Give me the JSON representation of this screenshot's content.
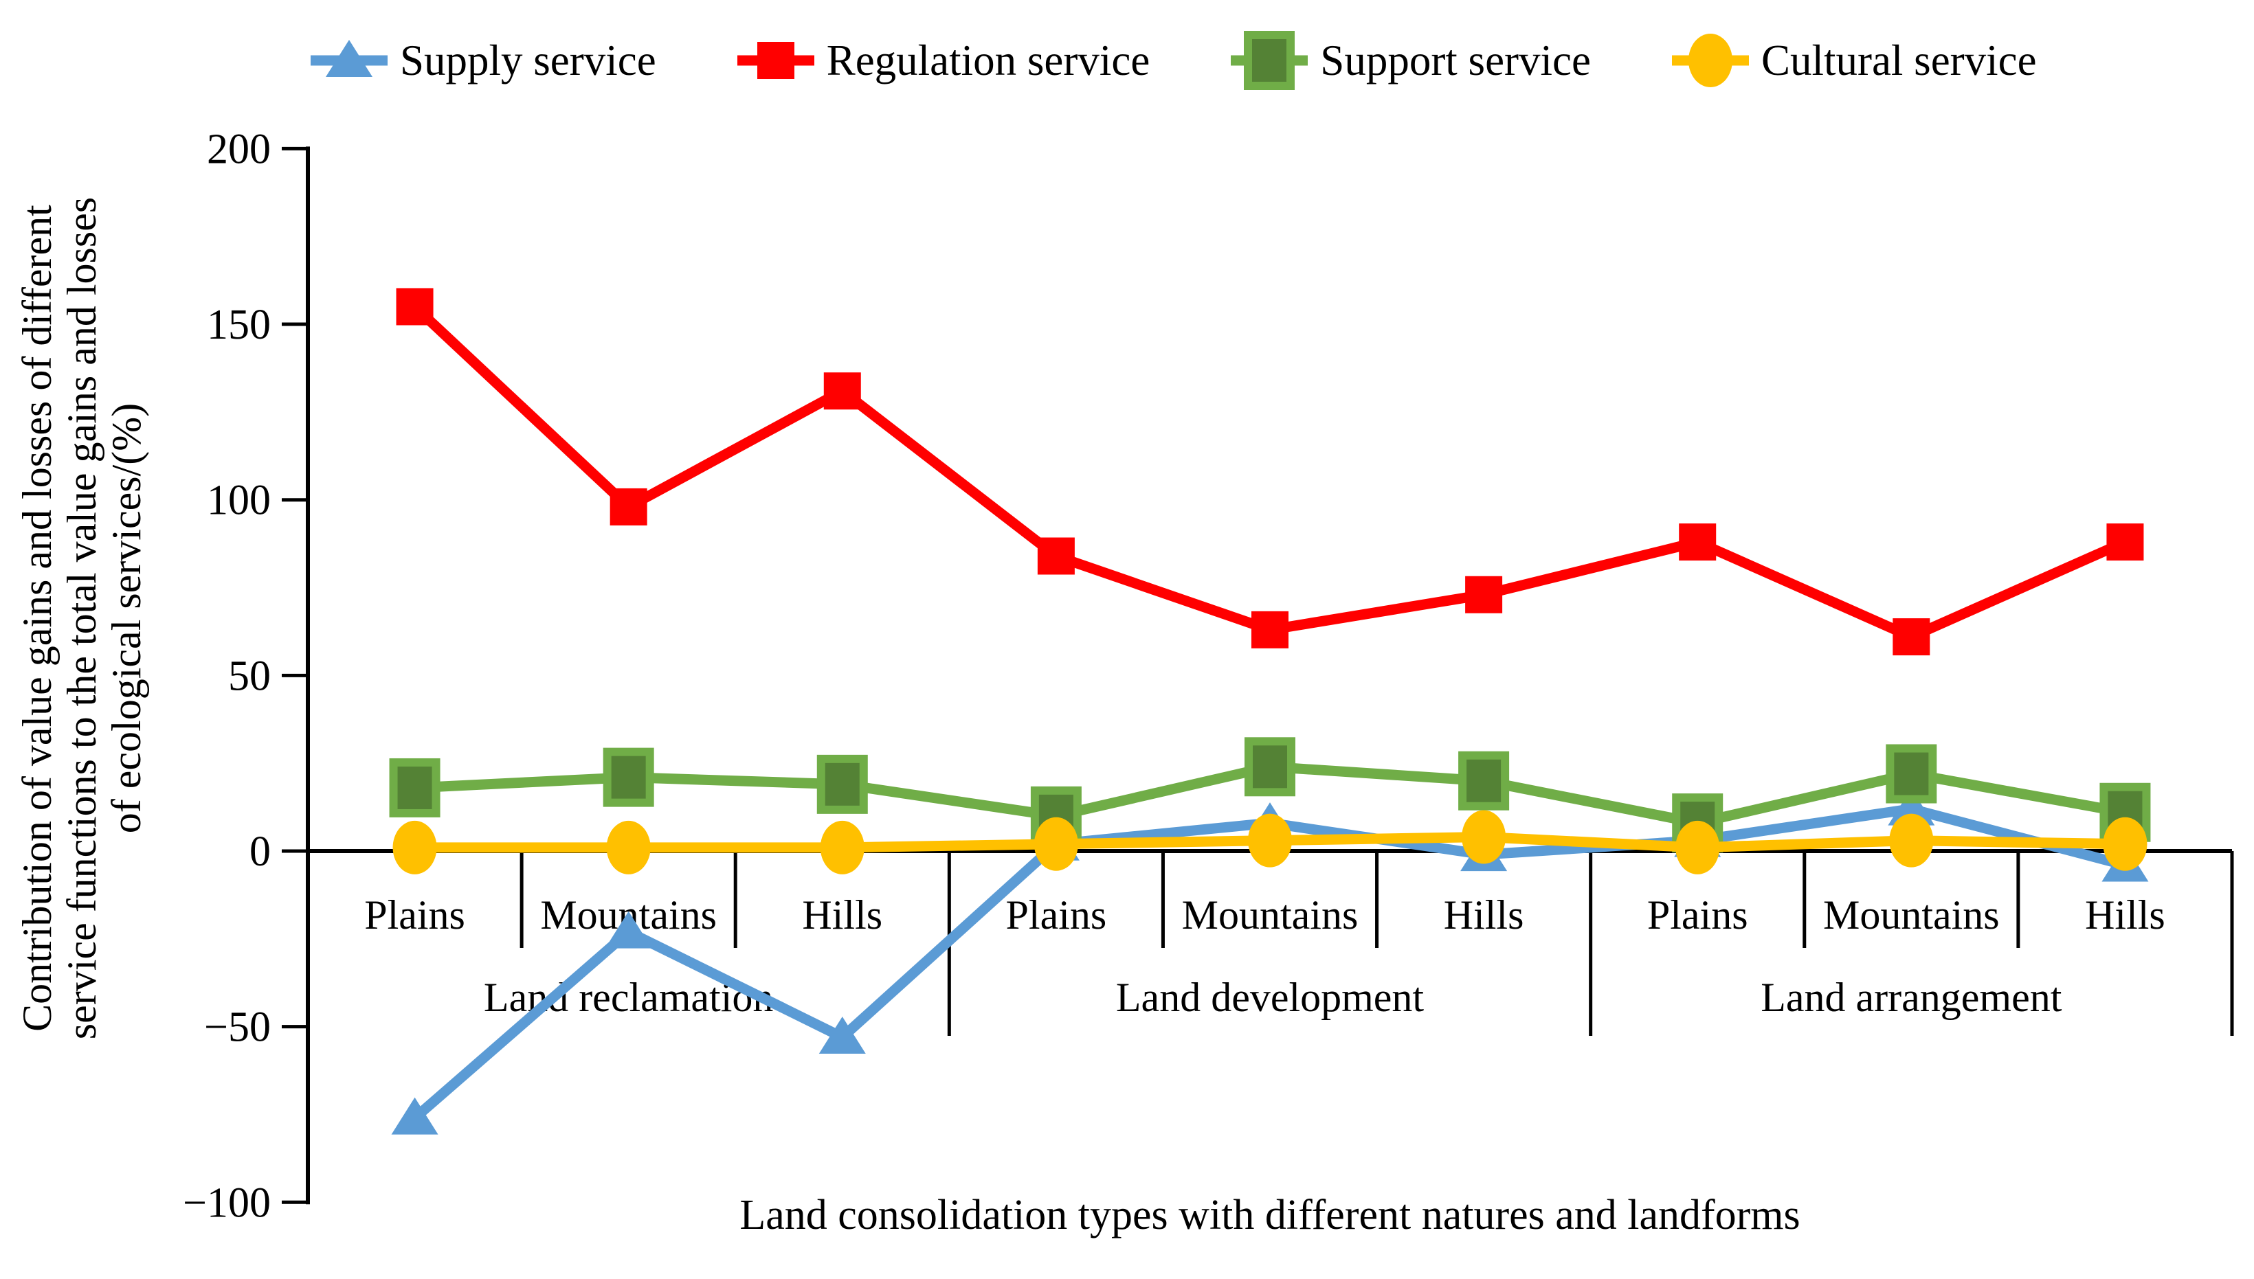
{
  "figure": {
    "ylabel_lines": [
      "Contribution of value gains and losses of different",
      "service functions to the total value gains and losses",
      "of ecological services/(%)"
    ]
  },
  "chart_data": {
    "type": "line",
    "title": "",
    "categories": [
      "Plains",
      "Mountains",
      "Hills",
      "Plains",
      "Mountains",
      "Hills",
      "Plains",
      "Mountains",
      "Hills"
    ],
    "group_labels": [
      "Land reclamation",
      "Land development",
      "Land arrangement"
    ],
    "series": [
      {
        "name": "Supply service",
        "color": "#5B9BD5",
        "marker": "triangle",
        "values": [
          -76,
          -23,
          -53,
          2,
          8,
          -1,
          3,
          12,
          -4
        ]
      },
      {
        "name": "Regulation service",
        "color": "#FF0000",
        "marker": "square",
        "values": [
          155,
          98,
          131,
          84,
          63,
          73,
          88,
          61,
          88
        ]
      },
      {
        "name": "Support service",
        "color": "#70AD47",
        "fill": "#548235",
        "marker": "square-outlined",
        "values": [
          18,
          21,
          19,
          10,
          24,
          20,
          8,
          22,
          11
        ]
      },
      {
        "name": "Cultural service",
        "color": "#FFC000",
        "marker": "circle",
        "values": [
          1,
          1,
          1,
          2,
          3,
          4,
          1,
          3,
          2
        ]
      }
    ],
    "ylim": [
      -100,
      200
    ],
    "yticks": [
      200,
      150,
      100,
      50,
      0,
      -50,
      -100
    ],
    "ylabel": "Contribution of value gains and losses of different service functions to the total value gains and losses of ecological services/(%)",
    "xlabel": "Land consolidation types with different natures and landforms",
    "legend_position": "top",
    "grid": false
  }
}
